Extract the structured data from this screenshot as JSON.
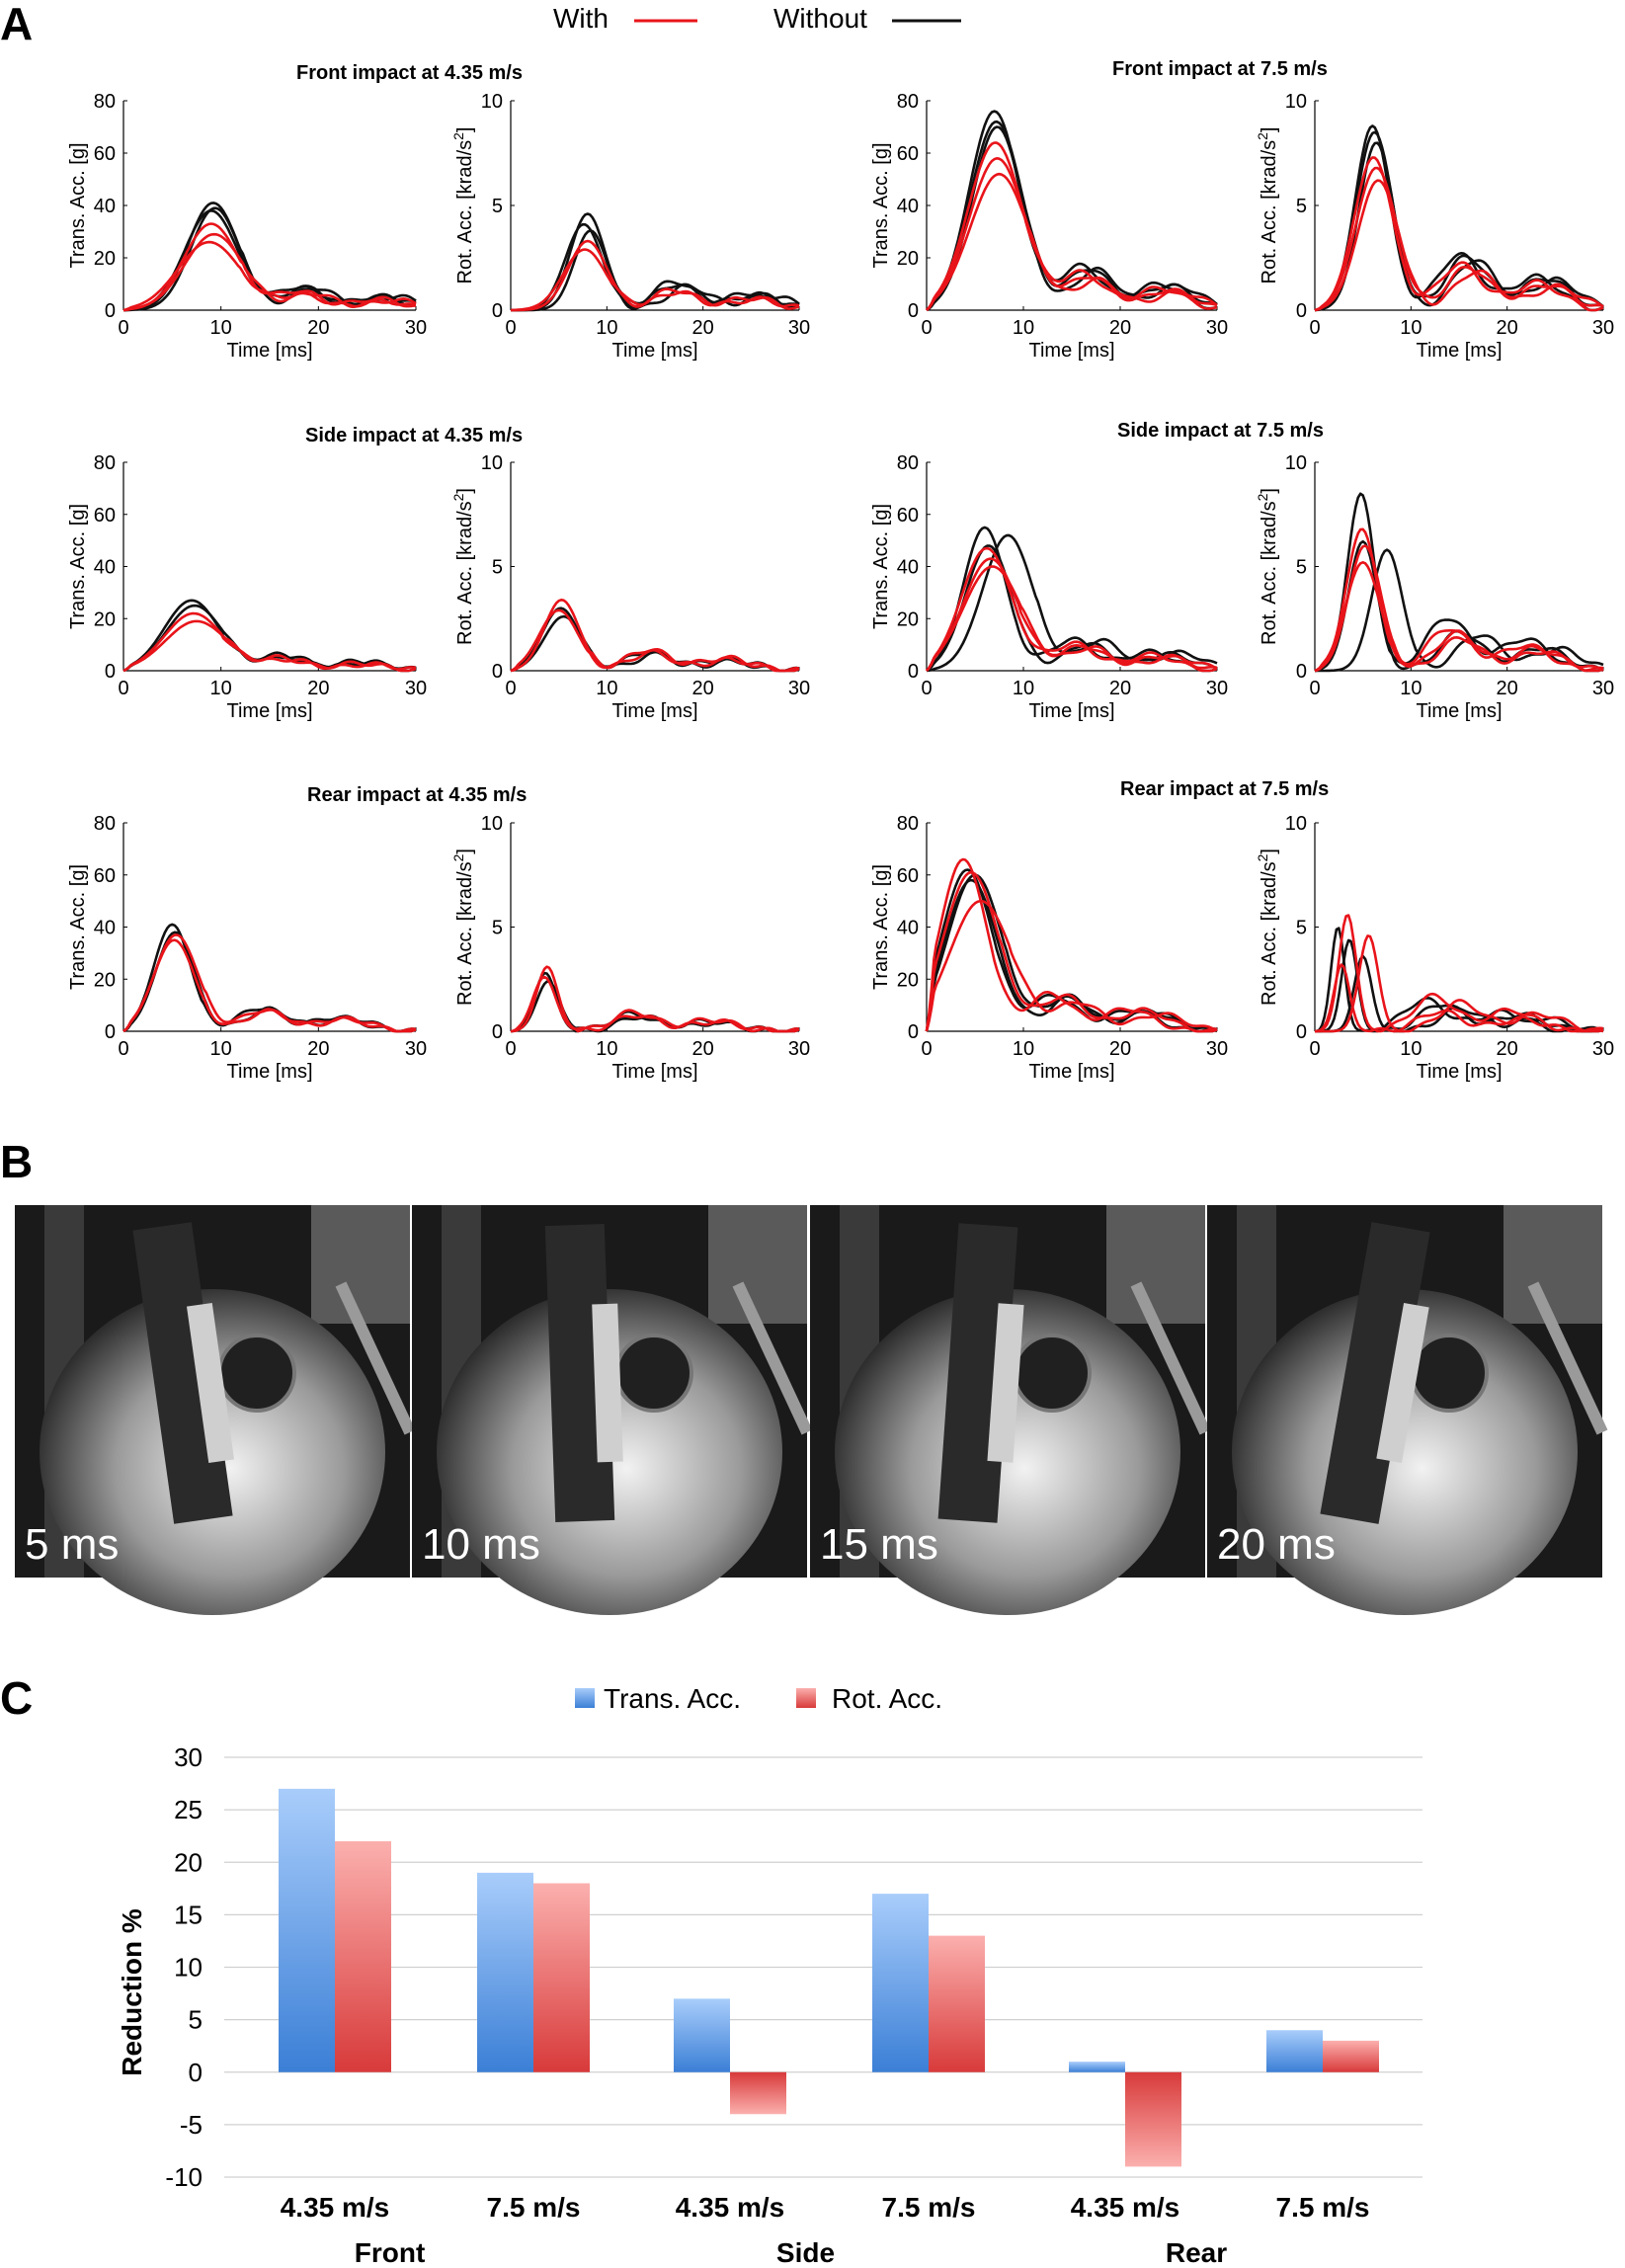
{
  "panels": {
    "a": "A",
    "b": "B",
    "c": "C"
  },
  "legend_top": {
    "with": "With",
    "without": "Without"
  },
  "colors": {
    "with": "#e8141a",
    "without": "#111111",
    "trans_top": "#a9cdfb",
    "trans_bottom": "#3b7fd6",
    "rot_top": "#fbb0ae",
    "rot_bottom": "#d83a3a"
  },
  "panel_a": {
    "trans_ylabel": "Trans. Acc. [g]",
    "rot_ylabel_main": "Rot. Acc. [krad/s",
    "rot_ylabel_sup": "2",
    "rot_ylabel_end": "]",
    "xlabel": "Time [ms]",
    "x_ticks": [
      "0",
      "10",
      "20",
      "30"
    ],
    "trans_ticks": [
      "0",
      "20",
      "40",
      "60",
      "80"
    ],
    "rot_ticks": [
      "0",
      "5",
      "10"
    ],
    "titles": {
      "front_435": "Front impact at 4.35 m/s",
      "front_75": "Front impact at 7.5 m/s",
      "side_435": "Side impact at 4.35 m/s",
      "side_75": "Side impact at 7.5 m/s",
      "rear_435": "Rear impact at 4.35 m/s",
      "rear_75": "Rear impact at 7.5 m/s"
    }
  },
  "panel_b": {
    "frames": [
      "5 ms",
      "10 ms",
      "15 ms",
      "20 ms"
    ]
  },
  "chart_data": [
    {
      "type": "line",
      "id": "front_435_trans",
      "title": "Front impact at 4.35 m/s",
      "xlabel": "Time [ms]",
      "ylabel": "Trans. Acc. [g]",
      "xlim": [
        0,
        30
      ],
      "ylim": [
        0,
        80
      ],
      "series": [
        {
          "name": "Without",
          "peaks": [
            [
              9.2,
              41,
              2.6
            ],
            [
              9.0,
              38,
              2.7
            ],
            [
              9.4,
              39,
              2.5
            ]
          ]
        },
        {
          "name": "With",
          "peaks": [
            [
              9.0,
              33,
              2.8
            ],
            [
              8.8,
              26,
              3.2
            ],
            [
              9.3,
              29,
              3.0
            ]
          ]
        }
      ]
    },
    {
      "type": "line",
      "id": "front_435_rot",
      "xlabel": "Time [ms]",
      "ylabel": "Rot. Acc. [krad/s2]",
      "xlim": [
        0,
        30
      ],
      "ylim": [
        0,
        10
      ],
      "series": [
        {
          "name": "Without",
          "peaks": [
            [
              8.0,
              4.6,
              1.8
            ],
            [
              7.6,
              4.1,
              1.9
            ],
            [
              8.3,
              3.8,
              1.7
            ]
          ]
        },
        {
          "name": "With",
          "peaks": [
            [
              8.0,
              3.3,
              2.0
            ],
            [
              7.7,
              2.9,
              2.2
            ]
          ]
        }
      ]
    },
    {
      "type": "line",
      "id": "front_75_trans",
      "title": "Front impact at 7.5 m/s",
      "xlabel": "Time [ms]",
      "ylabel": "Trans. Acc. [g]",
      "xlim": [
        0,
        30
      ],
      "ylim": [
        0,
        80
      ],
      "series": [
        {
          "name": "Without",
          "peaks": [
            [
              7.0,
              76,
              2.6
            ],
            [
              7.2,
              72,
              2.7
            ],
            [
              7.3,
              70,
              2.6
            ]
          ]
        },
        {
          "name": "With",
          "peaks": [
            [
              7.1,
              64,
              2.8
            ],
            [
              7.3,
              58,
              2.9
            ],
            [
              7.5,
              52,
              3.0
            ]
          ]
        }
      ]
    },
    {
      "type": "line",
      "id": "front_75_rot",
      "xlabel": "Time [ms]",
      "ylabel": "Rot. Acc. [krad/s2]",
      "xlim": [
        0,
        30
      ],
      "ylim": [
        0,
        10
      ],
      "series": [
        {
          "name": "Without",
          "peaks": [
            [
              6.0,
              8.8,
              1.8
            ],
            [
              6.2,
              8.5,
              1.9
            ],
            [
              6.4,
              8.0,
              1.8
            ]
          ]
        },
        {
          "name": "With",
          "peaks": [
            [
              6.1,
              7.3,
              2.0
            ],
            [
              6.4,
              6.8,
              2.1
            ],
            [
              6.6,
              6.2,
              2.1
            ]
          ]
        }
      ]
    },
    {
      "type": "line",
      "id": "side_435_trans",
      "title": "Side impact at 4.35 m/s",
      "xlabel": "Time [ms]",
      "ylabel": "Trans. Acc. [g]",
      "xlim": [
        0,
        30
      ],
      "ylim": [
        0,
        80
      ],
      "series": [
        {
          "name": "Without",
          "peaks": [
            [
              7.0,
              27,
              2.8
            ],
            [
              7.3,
              25,
              2.9
            ]
          ]
        },
        {
          "name": "With",
          "peaks": [
            [
              7.2,
              22,
              3.0
            ],
            [
              7.5,
              19,
              3.2
            ]
          ]
        }
      ]
    },
    {
      "type": "line",
      "id": "side_435_rot",
      "xlabel": "Time [ms]",
      "ylabel": "Rot. Acc. [krad/s2]",
      "xlim": [
        0,
        30
      ],
      "ylim": [
        0,
        10
      ],
      "series": [
        {
          "name": "Without",
          "peaks": [
            [
              5.2,
              3.0,
              1.9
            ],
            [
              5.5,
              2.6,
              2.0
            ]
          ]
        },
        {
          "name": "With",
          "peaks": [
            [
              5.3,
              3.4,
              1.8
            ],
            [
              5.0,
              2.9,
              2.0
            ]
          ]
        }
      ]
    },
    {
      "type": "line",
      "id": "side_75_trans",
      "title": "Side impact at 7.5 m/s",
      "xlabel": "Time [ms]",
      "ylabel": "Trans. Acc. [g]",
      "xlim": [
        0,
        30
      ],
      "ylim": [
        0,
        80
      ],
      "series": [
        {
          "name": "Without",
          "peaks": [
            [
              6.0,
              55,
              2.2
            ],
            [
              8.4,
              52,
              2.6
            ],
            [
              6.4,
              48,
              2.4
            ]
          ]
        },
        {
          "name": "With",
          "peaks": [
            [
              6.2,
              47,
              2.6
            ],
            [
              6.6,
              43,
              2.8
            ],
            [
              6.8,
              40,
              3.0
            ]
          ]
        }
      ]
    },
    {
      "type": "line",
      "id": "side_75_rot",
      "xlabel": "Time [ms]",
      "ylabel": "Rot. Acc. [krad/s2]",
      "xlim": [
        0,
        30
      ],
      "ylim": [
        0,
        10
      ],
      "series": [
        {
          "name": "Without",
          "peaks": [
            [
              4.8,
              8.5,
              1.4
            ],
            [
              7.5,
              5.8,
              1.6
            ],
            [
              5.0,
              6.2,
              1.5
            ]
          ]
        },
        {
          "name": "With",
          "peaks": [
            [
              4.9,
              6.8,
              1.6
            ],
            [
              5.2,
              6.0,
              1.7
            ],
            [
              5.0,
              5.2,
              1.8
            ]
          ]
        }
      ]
    },
    {
      "type": "line",
      "id": "rear_435_trans",
      "title": "Rear impact at 4.35 m/s",
      "xlabel": "Time [ms]",
      "ylabel": "Trans. Acc. [g]",
      "xlim": [
        0,
        30
      ],
      "ylim": [
        0,
        80
      ],
      "series": [
        {
          "name": "Without",
          "peaks": [
            [
              5.0,
              41,
              1.9
            ],
            [
              5.3,
              38,
              2.0
            ]
          ]
        },
        {
          "name": "With",
          "peaks": [
            [
              5.4,
              37,
              2.2
            ],
            [
              5.2,
              35,
              2.1
            ]
          ]
        }
      ]
    },
    {
      "type": "line",
      "id": "rear_435_rot",
      "xlabel": "Time [ms]",
      "ylabel": "Rot. Acc. [krad/s2]",
      "xlim": [
        0,
        30
      ],
      "ylim": [
        0,
        10
      ],
      "series": [
        {
          "name": "Without",
          "peaks": [
            [
              3.6,
              2.8,
              1.1
            ],
            [
              3.9,
              2.4,
              1.2
            ]
          ]
        },
        {
          "name": "With",
          "peaks": [
            [
              3.8,
              3.1,
              1.1
            ],
            [
              3.5,
              2.6,
              1.2
            ]
          ]
        }
      ]
    },
    {
      "type": "line",
      "id": "rear_75_trans",
      "title": "Rear impact at 7.5 m/s",
      "xlabel": "Time [ms]",
      "ylabel": "Trans. Acc. [g]",
      "xlim": [
        0,
        30
      ],
      "ylim": [
        0,
        80
      ],
      "series": [
        {
          "name": "Without",
          "peaks": [
            [
              4.2,
              62,
              2.6
            ],
            [
              5.0,
              60,
              2.8
            ],
            [
              4.6,
              58,
              2.7
            ]
          ]
        },
        {
          "name": "With",
          "peaks": [
            [
              3.8,
              66,
              2.4
            ],
            [
              4.6,
              61,
              2.8
            ],
            [
              5.6,
              50,
              3.2
            ]
          ]
        }
      ]
    },
    {
      "type": "line",
      "id": "rear_75_rot",
      "xlabel": "Time [ms]",
      "ylabel": "Rot. Acc. [krad/s2]",
      "xlim": [
        0,
        30
      ],
      "ylim": [
        0,
        10
      ],
      "series": [
        {
          "name": "Without",
          "peaks": [
            [
              2.4,
              5.0,
              0.7
            ],
            [
              3.6,
              4.4,
              0.8
            ],
            [
              5.0,
              3.6,
              0.9
            ]
          ]
        },
        {
          "name": "With",
          "peaks": [
            [
              3.4,
              5.6,
              0.9
            ],
            [
              5.6,
              4.6,
              1.0
            ],
            [
              2.8,
              3.2,
              0.8
            ]
          ]
        }
      ]
    },
    {
      "type": "bar",
      "id": "reduction",
      "ylabel": "Reduction %",
      "ylim": [
        -10,
        30
      ],
      "y_ticks": [
        "30",
        "25",
        "20",
        "15",
        "10",
        "5",
        "0",
        "-5",
        "-10"
      ],
      "categories": [
        "4.35 m/s",
        "7.5 m/s",
        "4.35 m/s",
        "7.5 m/s",
        "4.35 m/s",
        "7.5 m/s"
      ],
      "groups": [
        "Front",
        "Side",
        "Rear"
      ],
      "legend_position": "top-center",
      "series": [
        {
          "name": "Trans. Acc.",
          "values": [
            27,
            19,
            7,
            17,
            1,
            4
          ]
        },
        {
          "name": "Rot. Acc.",
          "values": [
            22,
            18,
            -4,
            13,
            -9,
            3
          ]
        }
      ]
    }
  ]
}
